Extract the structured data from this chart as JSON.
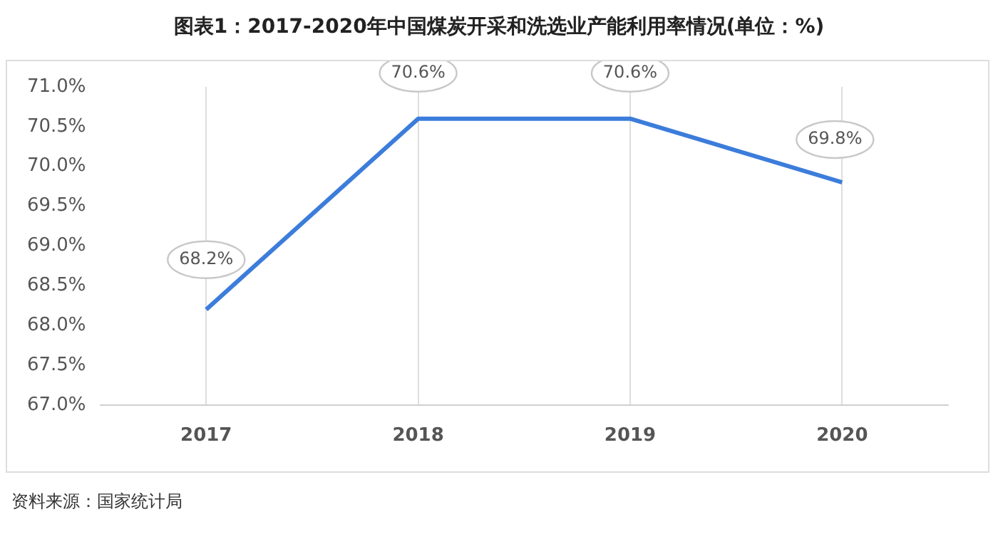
{
  "chart_data": {
    "type": "line",
    "title": "图表1：2017-2020年中国煤炭开采和洗选业产能利用率情况(单位：%)",
    "categories": [
      "2017",
      "2018",
      "2019",
      "2020"
    ],
    "series": [
      {
        "color": "#3c7ddb",
        "values": [
          68.2,
          70.6,
          70.6,
          69.8
        ]
      }
    ],
    "ylim": [
      67.0,
      71.0
    ],
    "yticks": [
      {
        "value": 67.0,
        "label": "67.0%"
      },
      {
        "value": 67.5,
        "label": "67.5%"
      },
      {
        "value": 68.0,
        "label": "68.0%"
      },
      {
        "value": 68.5,
        "label": "68.5%"
      },
      {
        "value": 69.0,
        "label": "69.0%"
      },
      {
        "value": 69.5,
        "label": "69.5%"
      },
      {
        "value": 70.0,
        "label": "70.0%"
      },
      {
        "value": 70.5,
        "label": "70.5%"
      },
      {
        "value": 71.0,
        "label": "71.0%"
      }
    ],
    "value_labels": [
      "68.2%",
      "70.6%",
      "70.6%",
      "69.8%"
    ],
    "grid": "x",
    "legend": false,
    "marker": "none",
    "line_style": "solid",
    "annotations": [
      "资料来源：国家统计局"
    ]
  }
}
